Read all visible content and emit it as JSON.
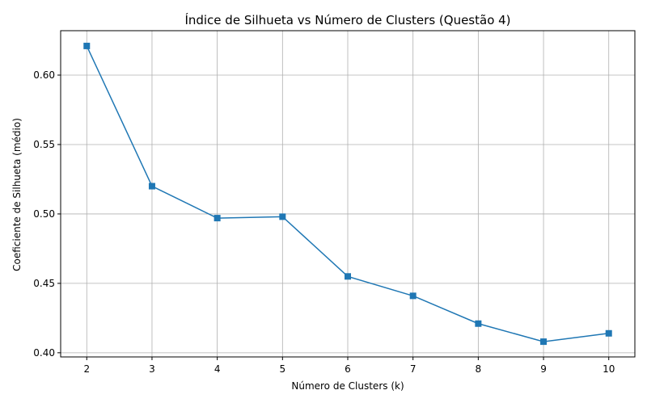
{
  "chart_data": {
    "type": "line",
    "title": "Índice de Silhueta vs Número de Clusters (Questão 4)",
    "xlabel": "Número de Clusters (k)",
    "ylabel": "Coeficiente de Silhueta (médio)",
    "x": [
      2,
      3,
      4,
      5,
      6,
      7,
      8,
      9,
      10
    ],
    "series": [
      {
        "values": [
          0.621,
          0.52,
          0.497,
          0.498,
          0.455,
          0.441,
          0.421,
          0.408,
          0.414
        ]
      }
    ],
    "xlim": [
      1.6,
      10.4
    ],
    "ylim": [
      0.397,
      0.632
    ],
    "xticks": [
      "2",
      "3",
      "4",
      "5",
      "6",
      "7",
      "8",
      "9",
      "10"
    ],
    "yticks": [
      0.4,
      0.45,
      0.5,
      0.55,
      0.6
    ],
    "ytick_labels": [
      "0.40",
      "0.45",
      "0.50",
      "0.55",
      "0.60"
    ],
    "grid": true,
    "marker": "square",
    "colors": {
      "line": "#1f77b4",
      "grid": "#b0b0b0",
      "axes": "#000000"
    }
  }
}
